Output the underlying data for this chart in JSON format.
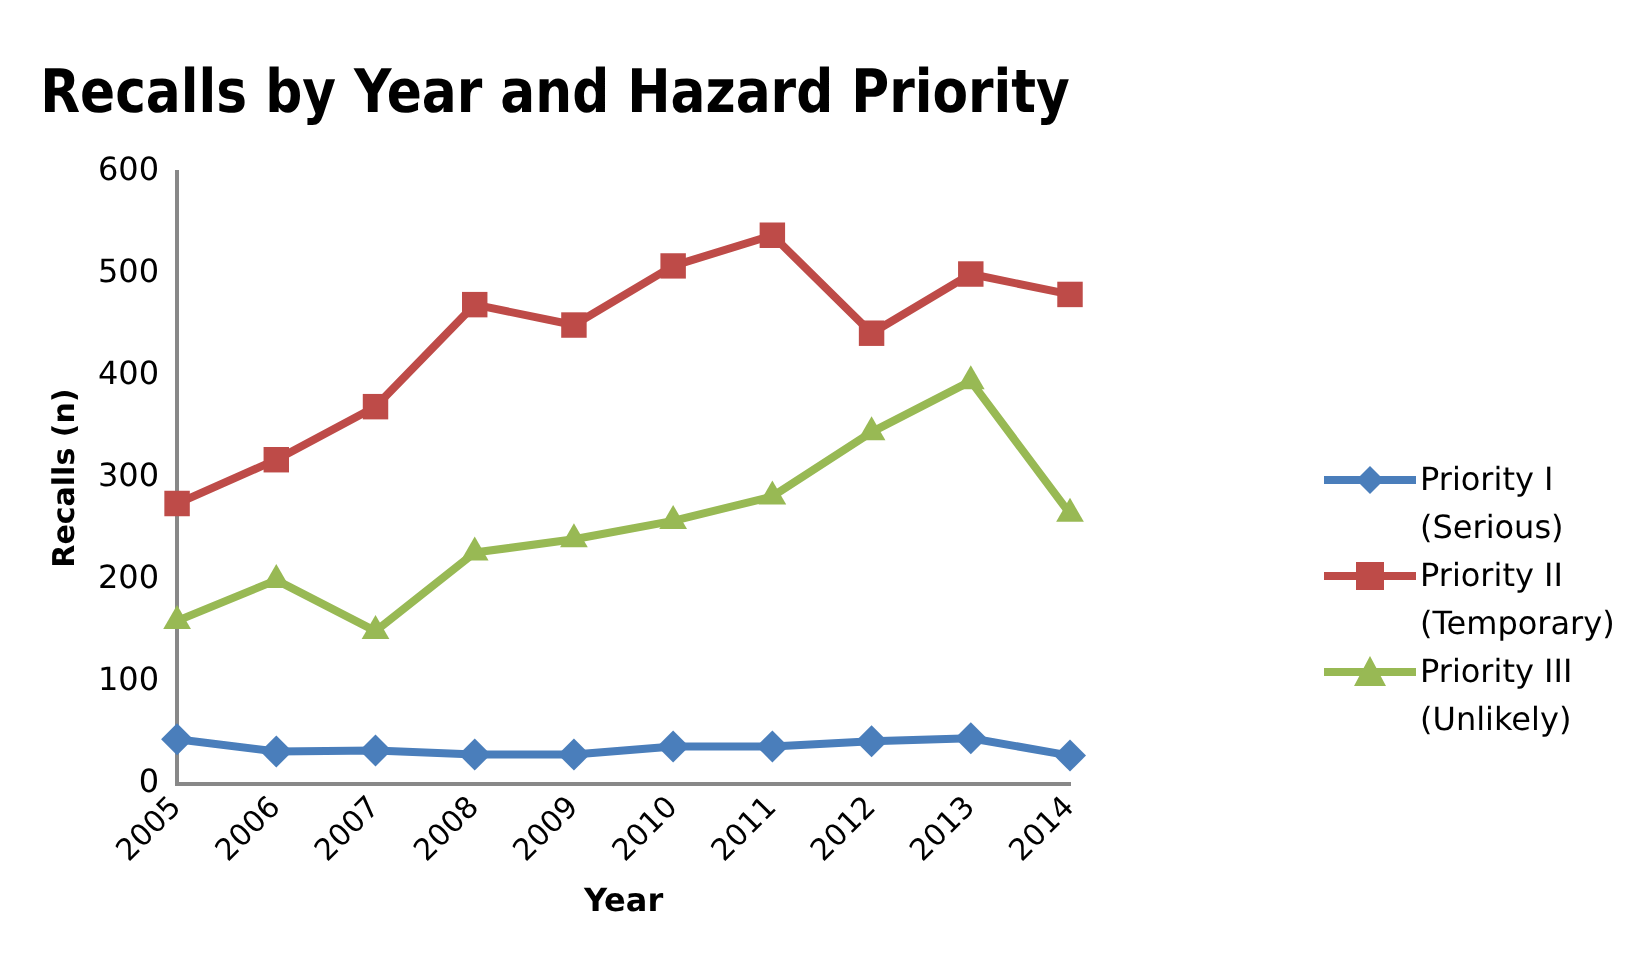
{
  "chart_data": {
    "type": "line",
    "title": "Recalls by Year and Hazard Priority",
    "xlabel": "Year",
    "ylabel": "Recalls (n)",
    "categories": [
      "2005",
      "2006",
      "2007",
      "2008",
      "2009",
      "2010",
      "2011",
      "2012",
      "2013",
      "2014"
    ],
    "series": [
      {
        "name": "Priority I (Serious)",
        "color": "#4a7ebb",
        "marker": "diamond",
        "values": [
          44,
          32,
          33,
          29,
          29,
          37,
          37,
          42,
          45,
          28
        ]
      },
      {
        "name": "Priority II (Temporary)",
        "color": "#be4b48",
        "marker": "square",
        "values": [
          275,
          318,
          370,
          470,
          450,
          508,
          538,
          442,
          500,
          480
        ]
      },
      {
        "name": "Priority III (Unlikely)",
        "color": "#98b954",
        "marker": "triangle",
        "values": [
          160,
          200,
          150,
          227,
          240,
          258,
          282,
          345,
          395,
          265
        ]
      }
    ],
    "ylim": [
      0,
      600
    ],
    "yticks": [
      0,
      100,
      200,
      300,
      400,
      500,
      600
    ],
    "grid": false,
    "legend": "right"
  }
}
